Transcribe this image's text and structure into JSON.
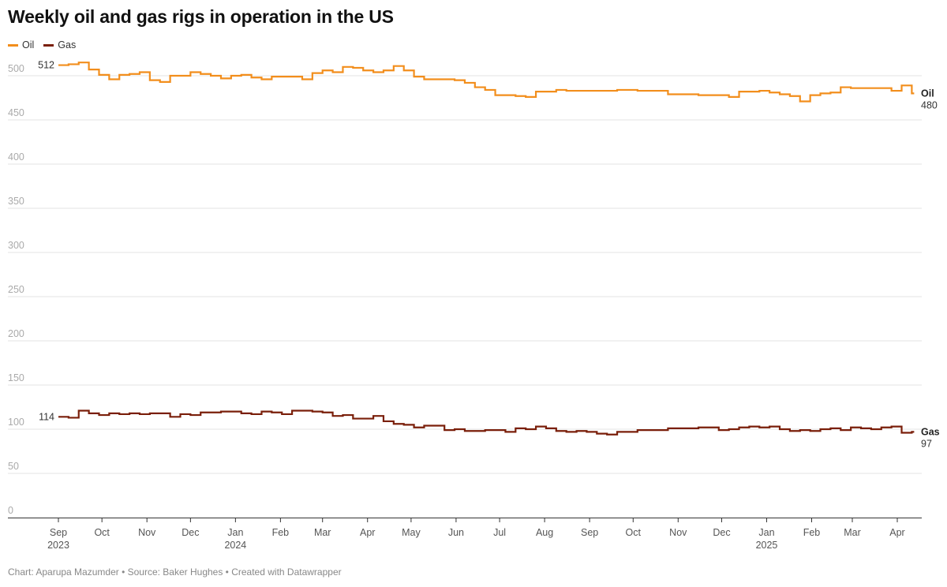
{
  "title": "Weekly oil and gas rigs in operation in the US",
  "footer": "Chart: Aparupa Mazumder • Source: Baker Hughes • Created with Datawrapper",
  "chart_data": {
    "type": "line",
    "step": true,
    "title": "Weekly oil and gas rigs in operation in the US",
    "xlabel": "",
    "ylabel": "",
    "ylim": [
      0,
      500
    ],
    "yticks": [
      0,
      50,
      100,
      150,
      200,
      250,
      300,
      350,
      400,
      450,
      500
    ],
    "grid": true,
    "legend": "top-left",
    "xticks": [
      {
        "date": "2023-09-01",
        "label": "Sep",
        "year": "2023"
      },
      {
        "date": "2023-10-01",
        "label": "Oct",
        "year": ""
      },
      {
        "date": "2023-11-01",
        "label": "Nov",
        "year": ""
      },
      {
        "date": "2023-12-01",
        "label": "Dec",
        "year": ""
      },
      {
        "date": "2024-01-01",
        "label": "Jan",
        "year": "2024"
      },
      {
        "date": "2024-02-01",
        "label": "Feb",
        "year": ""
      },
      {
        "date": "2024-03-01",
        "label": "Mar",
        "year": ""
      },
      {
        "date": "2024-04-01",
        "label": "Apr",
        "year": ""
      },
      {
        "date": "2024-05-01",
        "label": "May",
        "year": ""
      },
      {
        "date": "2024-06-01",
        "label": "Jun",
        "year": ""
      },
      {
        "date": "2024-07-01",
        "label": "Jul",
        "year": ""
      },
      {
        "date": "2024-08-01",
        "label": "Aug",
        "year": ""
      },
      {
        "date": "2024-09-01",
        "label": "Sep",
        "year": ""
      },
      {
        "date": "2024-10-01",
        "label": "Oct",
        "year": ""
      },
      {
        "date": "2024-11-01",
        "label": "Nov",
        "year": ""
      },
      {
        "date": "2024-12-01",
        "label": "Dec",
        "year": ""
      },
      {
        "date": "2025-01-01",
        "label": "Jan",
        "year": "2025"
      },
      {
        "date": "2025-02-01",
        "label": "Feb",
        "year": ""
      },
      {
        "date": "2025-03-01",
        "label": "Mar",
        "year": ""
      },
      {
        "date": "2025-04-01",
        "label": "Apr",
        "year": ""
      }
    ],
    "x": [
      "2023-09-01",
      "2023-09-08",
      "2023-09-15",
      "2023-09-22",
      "2023-09-29",
      "2023-10-06",
      "2023-10-13",
      "2023-10-20",
      "2023-10-27",
      "2023-11-03",
      "2023-11-10",
      "2023-11-17",
      "2023-11-24",
      "2023-12-01",
      "2023-12-08",
      "2023-12-15",
      "2023-12-22",
      "2023-12-29",
      "2024-01-05",
      "2024-01-12",
      "2024-01-19",
      "2024-01-26",
      "2024-02-02",
      "2024-02-09",
      "2024-02-16",
      "2024-02-23",
      "2024-03-01",
      "2024-03-08",
      "2024-03-15",
      "2024-03-22",
      "2024-03-29",
      "2024-04-05",
      "2024-04-12",
      "2024-04-19",
      "2024-04-26",
      "2024-05-03",
      "2024-05-10",
      "2024-05-17",
      "2024-05-24",
      "2024-05-31",
      "2024-06-07",
      "2024-06-14",
      "2024-06-21",
      "2024-06-28",
      "2024-07-05",
      "2024-07-12",
      "2024-07-19",
      "2024-07-26",
      "2024-08-02",
      "2024-08-09",
      "2024-08-16",
      "2024-08-23",
      "2024-08-30",
      "2024-09-06",
      "2024-09-13",
      "2024-09-20",
      "2024-09-27",
      "2024-10-04",
      "2024-10-11",
      "2024-10-18",
      "2024-10-25",
      "2024-11-01",
      "2024-11-08",
      "2024-11-15",
      "2024-11-22",
      "2024-11-29",
      "2024-12-06",
      "2024-12-13",
      "2024-12-20",
      "2024-12-27",
      "2025-01-03",
      "2025-01-10",
      "2025-01-17",
      "2025-01-24",
      "2025-01-31",
      "2025-02-07",
      "2025-02-14",
      "2025-02-21",
      "2025-02-28",
      "2025-03-07",
      "2025-03-14",
      "2025-03-21",
      "2025-03-28",
      "2025-04-04",
      "2025-04-11"
    ],
    "series": [
      {
        "name": "Oil",
        "color": "#f28e1c",
        "start_label": "512",
        "end_label": "480",
        "values": [
          512,
          513,
          515,
          507,
          501,
          496,
          501,
          502,
          504,
          495,
          493,
          500,
          500,
          504,
          502,
          500,
          497,
          500,
          501,
          498,
          496,
          499,
          499,
          499,
          496,
          503,
          506,
          504,
          510,
          509,
          506,
          504,
          506,
          511,
          506,
          499,
          496,
          496,
          496,
          495,
          492,
          487,
          484,
          478,
          478,
          477,
          476,
          482,
          482,
          484,
          483,
          483,
          483,
          483,
          483,
          484,
          484,
          483,
          483,
          483,
          479,
          479,
          479,
          478,
          478,
          478,
          476,
          482,
          482,
          483,
          481,
          479,
          477,
          471,
          478,
          480,
          481,
          487,
          486,
          486,
          486,
          486,
          483,
          489,
          480
        ]
      },
      {
        "name": "Gas",
        "color": "#7a1f0a",
        "start_label": "114",
        "end_label": "97",
        "values": [
          114,
          113,
          121,
          118,
          116,
          118,
          117,
          118,
          117,
          118,
          118,
          114,
          117,
          116,
          119,
          119,
          120,
          120,
          118,
          117,
          120,
          119,
          117,
          121,
          121,
          120,
          119,
          115,
          116,
          112,
          112,
          115,
          109,
          106,
          105,
          102,
          104,
          104,
          99,
          100,
          98,
          98,
          99,
          99,
          97,
          101,
          100,
          103,
          101,
          98,
          97,
          98,
          97,
          95,
          94,
          97,
          97,
          99,
          99,
          99,
          101,
          101,
          101,
          102,
          102,
          99,
          100,
          102,
          103,
          102,
          103,
          100,
          98,
          99,
          98,
          100,
          101,
          99,
          102,
          101,
          100,
          102,
          103,
          96,
          97
        ]
      }
    ]
  }
}
